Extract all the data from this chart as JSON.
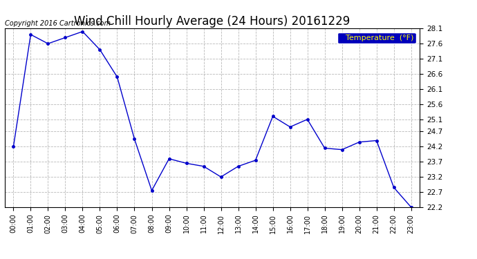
{
  "title": "Wind Chill Hourly Average (24 Hours) 20161229",
  "copyright": "Copyright 2016 Cartronics.com",
  "legend_label": "Temperature  (°F)",
  "hours": [
    "00:00",
    "01:00",
    "02:00",
    "03:00",
    "04:00",
    "05:00",
    "06:00",
    "07:00",
    "08:00",
    "09:00",
    "10:00",
    "11:00",
    "12:00",
    "13:00",
    "14:00",
    "15:00",
    "16:00",
    "17:00",
    "18:00",
    "19:00",
    "20:00",
    "21:00",
    "22:00",
    "23:00"
  ],
  "values": [
    24.2,
    27.9,
    27.6,
    27.8,
    28.0,
    27.4,
    26.5,
    24.45,
    22.75,
    23.8,
    23.65,
    23.55,
    23.2,
    23.55,
    23.75,
    25.2,
    24.85,
    25.1,
    24.15,
    24.1,
    24.35,
    24.4,
    22.85,
    22.2
  ],
  "x_values": [
    0,
    1,
    2,
    3,
    4,
    5,
    6,
    7,
    8,
    9,
    10,
    11,
    12,
    13,
    14,
    15,
    16,
    17,
    18,
    19,
    20,
    21,
    22,
    23
  ],
  "ylim_min": 22.2,
  "ylim_max": 28.1,
  "yticks": [
    22.2,
    22.7,
    23.2,
    23.7,
    24.2,
    24.7,
    25.1,
    25.6,
    26.1,
    26.6,
    27.1,
    27.6,
    28.1
  ],
  "line_color": "#0000cc",
  "marker_color": "#0000cc",
  "bg_color": "#ffffff",
  "grid_color": "#b0b0b0",
  "title_fontsize": 12,
  "tick_fontsize": 7,
  "copyright_fontsize": 7,
  "legend_bg": "#0000bb",
  "legend_fg": "#ffff00",
  "legend_fontsize": 8
}
